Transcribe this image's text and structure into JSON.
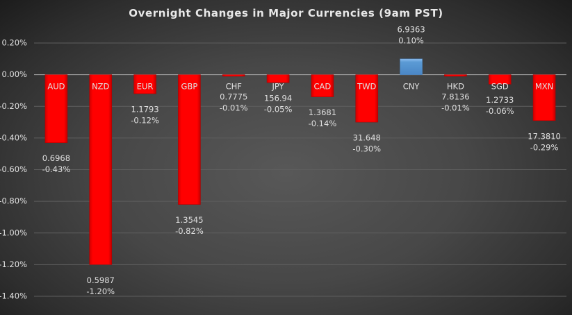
{
  "chart_data": {
    "type": "bar",
    "title": "Overnight Changes in Major Currencies (9am PST)",
    "xlabel": "",
    "ylabel": "",
    "ylim": [
      -1.4,
      0.2
    ],
    "yticks": [
      "0.20%",
      "0.00%",
      "-0.20%",
      "-0.40%",
      "-0.60%",
      "-0.80%",
      "-1.00%",
      "-1.20%",
      "-1.40%"
    ],
    "grid": true,
    "legend": "none",
    "categories": [
      "AUD",
      "NZD",
      "EUR",
      "GBP",
      "CHF",
      "JPY",
      "CAD",
      "TWD",
      "CNY",
      "HKD",
      "SGD",
      "MXN"
    ],
    "values": [
      -0.43,
      -1.2,
      -0.12,
      -0.82,
      -0.01,
      -0.05,
      -0.14,
      -0.3,
      0.1,
      -0.01,
      -0.06,
      -0.29
    ],
    "value_labels": [
      "-0.43%",
      "-1.20%",
      "-0.12%",
      "-0.82%",
      "-0.01%",
      "-0.05%",
      "-0.14%",
      "-0.30%",
      "0.10%",
      "-0.01%",
      "-0.06%",
      "-0.29%"
    ],
    "rates": [
      "0.6968",
      "0.5987",
      "1.1793",
      "1.3545",
      "0.7775",
      "156.94",
      "1.3681",
      "31.648",
      "6.9363",
      "7.8136",
      "1.2733",
      "17.3810"
    ],
    "colors": {
      "negative": "#ff0000",
      "positive": "#5b9bd5",
      "background": "#474747",
      "text": "#e0e0e0"
    }
  }
}
